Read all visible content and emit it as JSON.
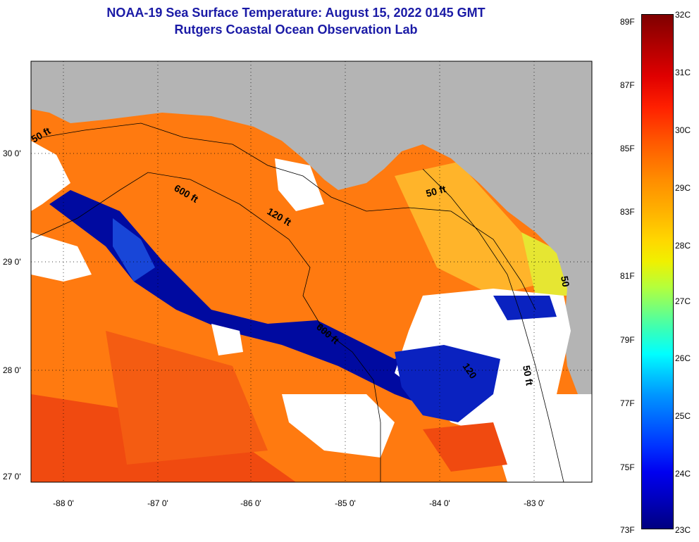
{
  "title": {
    "line1": "NOAA-19 Sea Surface Temperature:  August 15, 2022 0145 GMT",
    "line2": "Rutgers Coastal Ocean Observation Lab"
  },
  "map": {
    "lat_labels": [
      "30 0'",
      "29 0'",
      "28 0'",
      "27 0'"
    ],
    "lon_labels": [
      "-88 0'",
      "-87 0'",
      "-86 0'",
      "-85 0'",
      "-84 0'",
      "-83 0'"
    ],
    "contour_labels": [
      "50 ft",
      "600 ft",
      "120 ft",
      "50 ft",
      "50",
      "600 ft",
      "120",
      "50 ft"
    ],
    "colors": {
      "land": "#b4b4b4",
      "cloud": "#ffffff",
      "sst_warm": "#ff7a10",
      "sst_hot": "#f04a10",
      "sst_cool": "#ffb42a",
      "sst_cold": "#000aa0",
      "nearshore": "#e6e632"
    }
  },
  "colorbar": {
    "fahrenheit": [
      "89F",
      "87F",
      "85F",
      "83F",
      "81F",
      "79F",
      "77F",
      "75F",
      "73F"
    ],
    "celsius": [
      "32C",
      "31C",
      "30C",
      "29C",
      "28C",
      "27C",
      "26C",
      "25C",
      "24C",
      "23C"
    ]
  }
}
